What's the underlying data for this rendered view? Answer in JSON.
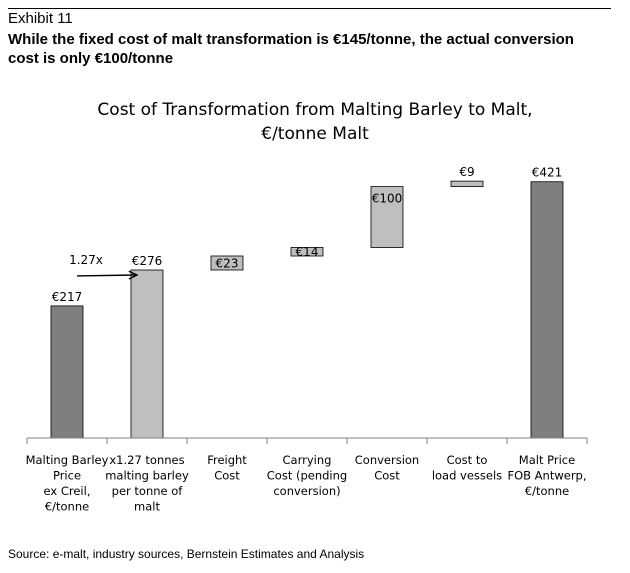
{
  "header": {
    "exhibit": "Exhibit 11",
    "headline": "While the fixed cost of malt transformation is €145/tonne, the actual conversion cost is only €100/tonne"
  },
  "chart_data": {
    "type": "bar",
    "subtype": "waterfall",
    "title_lines": [
      "Cost of Transformation from Malting Barley to Malt,",
      "€/tonne Malt"
    ],
    "categories": [
      [
        "Malting Barley",
        "Price",
        "ex Creil,",
        "€/tonne"
      ],
      [
        "x1.27 tonnes",
        "malting barley",
        "per tonne of",
        "malt"
      ],
      [
        "Freight",
        "Cost"
      ],
      [
        "Carrying",
        "Cost (pending",
        "conversion)"
      ],
      [
        "Conversion",
        "Cost"
      ],
      [
        "Cost to",
        "load vessels"
      ],
      [
        "Malt Price",
        "FOB Antwerp,",
        "€/tonne"
      ]
    ],
    "bars": [
      {
        "start": 0,
        "end": 217,
        "label": "€217",
        "kind": "total",
        "label_pos": "above"
      },
      {
        "start": 0,
        "end": 276,
        "label": "€276",
        "kind": "step",
        "label_pos": "above"
      },
      {
        "start": 276,
        "end": 299,
        "label": "€23",
        "kind": "step",
        "label_pos": "inside"
      },
      {
        "start": 299,
        "end": 313,
        "label": "€14",
        "kind": "step",
        "label_pos": "inside"
      },
      {
        "start": 313,
        "end": 413,
        "label": "€100",
        "kind": "step",
        "label_pos": "inside-top"
      },
      {
        "start": 413,
        "end": 422,
        "label": "€9",
        "kind": "step",
        "label_pos": "above"
      },
      {
        "start": 0,
        "end": 421,
        "label": "€421",
        "kind": "total",
        "label_pos": "above"
      }
    ],
    "annotation": {
      "text": "1.27x",
      "from_bar": 0,
      "to_bar": 1
    },
    "ylim": [
      0,
      460
    ],
    "colors": {
      "total": "#7f7f7f",
      "step": "#bfbfbf",
      "edge": "#000000"
    },
    "grid": false,
    "legend": "none"
  },
  "footer": {
    "source": "Source: e-malt, industry sources, Bernstein Estimates and Analysis"
  }
}
